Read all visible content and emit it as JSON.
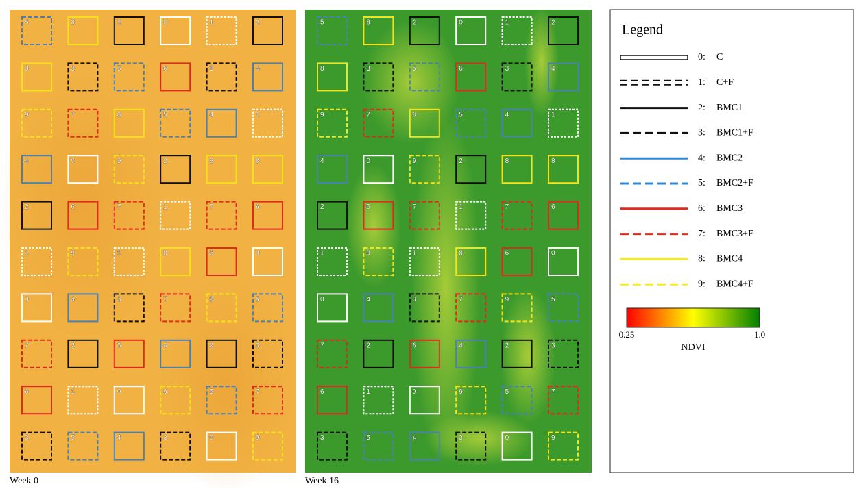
{
  "panels": [
    {
      "caption": "Week 0",
      "plots": [
        [
          "5",
          "8",
          "2",
          "0",
          "1",
          "2"
        ],
        [
          "8",
          "3",
          "5",
          "6",
          "3",
          "4"
        ],
        [
          "9",
          "7",
          "8",
          "5",
          "4",
          "1"
        ],
        [
          "4",
          "0",
          "9",
          "2",
          "8",
          "8"
        ],
        [
          "2",
          "6",
          "7",
          "1",
          "7",
          "6"
        ],
        [
          "1",
          "9",
          "1",
          "8",
          "6",
          "0"
        ],
        [
          "0",
          "4",
          "3",
          "7",
          "9",
          "5"
        ],
        [
          "7",
          "2",
          "6",
          "4",
          "2",
          "3"
        ],
        [
          "6",
          "1",
          "0",
          "9",
          "5",
          "7"
        ],
        [
          "3",
          "5",
          "4",
          "3",
          "0",
          "9"
        ]
      ]
    },
    {
      "caption": "Week 16",
      "plots": [
        [
          "5",
          "8",
          "2",
          "0",
          "1",
          "2"
        ],
        [
          "8",
          "3",
          "5",
          "6",
          "3",
          "4"
        ],
        [
          "9",
          "7",
          "8",
          "5",
          "4",
          "1"
        ],
        [
          "4",
          "0",
          "9",
          "2",
          "8",
          "8"
        ],
        [
          "2",
          "6",
          "7",
          "1",
          "7",
          "6"
        ],
        [
          "1",
          "9",
          "1",
          "8",
          "6",
          "0"
        ],
        [
          "0",
          "4",
          "3",
          "7",
          "9",
          "5"
        ],
        [
          "7",
          "2",
          "6",
          "4",
          "2",
          "3"
        ],
        [
          "6",
          "1",
          "0",
          "9",
          "5",
          "7"
        ],
        [
          "3",
          "5",
          "4",
          "3",
          "0",
          "9"
        ]
      ]
    }
  ],
  "legend": {
    "title": "Legend",
    "items": [
      {
        "code": "0:",
        "name": "C"
      },
      {
        "code": "1:",
        "name": "C+F"
      },
      {
        "code": "2:",
        "name": "BMC1"
      },
      {
        "code": "3:",
        "name": "BMC1+F"
      },
      {
        "code": "4:",
        "name": "BMC2"
      },
      {
        "code": "5:",
        "name": "BMC2+F"
      },
      {
        "code": "6:",
        "name": "BMC3"
      },
      {
        "code": "7:",
        "name": "BMC3+F"
      },
      {
        "code": "8:",
        "name": "BMC4"
      },
      {
        "code": "9:",
        "name": "BMC4+F"
      }
    ],
    "colorbar": {
      "min_label": "0.25",
      "max_label": "1.0",
      "label": "NDVI"
    }
  }
}
